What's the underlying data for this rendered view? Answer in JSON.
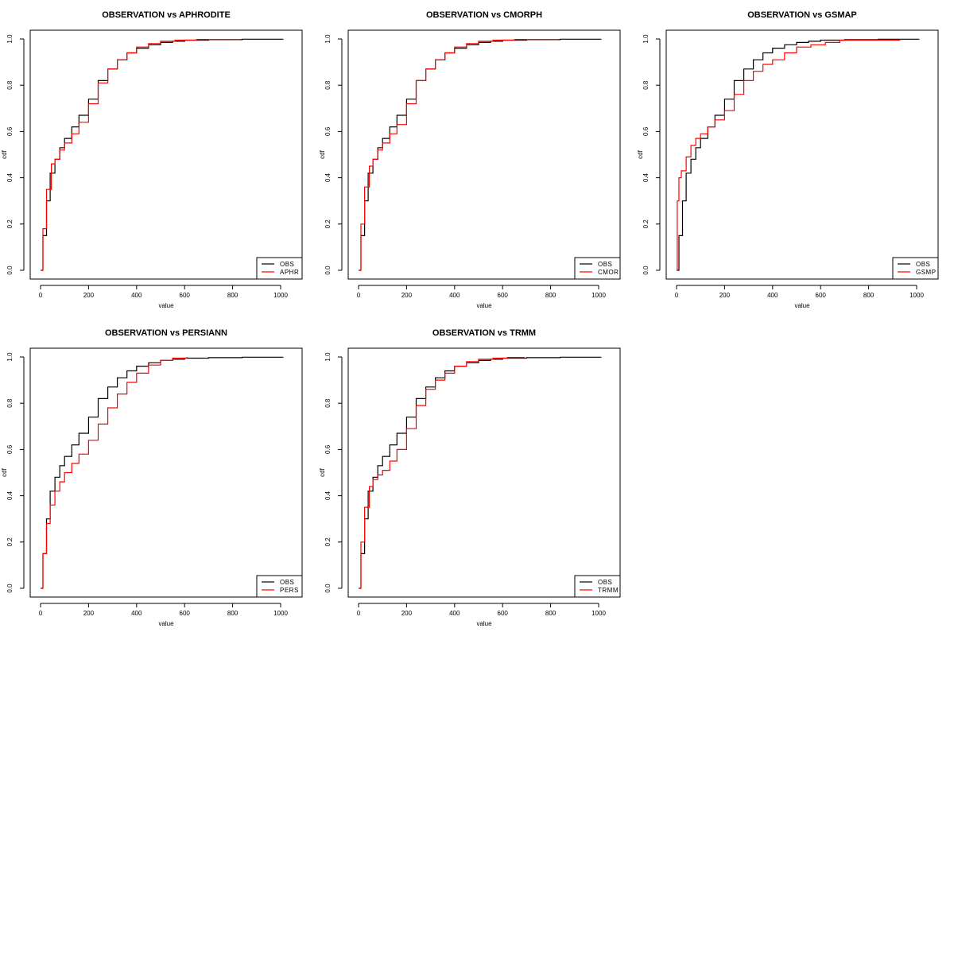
{
  "colors": {
    "obs": "#000000",
    "product": "#ff0000"
  },
  "chart_data": [
    {
      "type": "line",
      "title": "OBSERVATION vs APHRODITE",
      "xlabel": "value",
      "ylabel": "cdf",
      "xlim": [
        0,
        1000
      ],
      "ylim": [
        0,
        1
      ],
      "x_ticks": [
        "0",
        "200",
        "400",
        "600",
        "800",
        "1000"
      ],
      "y_ticks": [
        "0.0",
        "0.2",
        "0.4",
        "0.6",
        "0.8",
        "1.0"
      ],
      "legend_position": "bottom-right",
      "series": [
        {
          "name": "OBS",
          "color": "#000000",
          "x": [
            0,
            10,
            25,
            40,
            60,
            80,
            100,
            130,
            160,
            200,
            240,
            280,
            320,
            360,
            400,
            450,
            500,
            550,
            600,
            700,
            840,
            1010
          ],
          "y": [
            0.0,
            0.15,
            0.3,
            0.42,
            0.48,
            0.53,
            0.57,
            0.62,
            0.67,
            0.74,
            0.82,
            0.87,
            0.91,
            0.94,
            0.96,
            0.975,
            0.985,
            0.99,
            0.995,
            0.997,
            0.999,
            1.0
          ]
        },
        {
          "name": "APHR",
          "color": "#ff0000",
          "x": [
            0,
            10,
            25,
            45,
            60,
            80,
            100,
            130,
            160,
            200,
            240,
            280,
            320,
            360,
            400,
            450,
            500,
            560,
            650,
            830
          ],
          "y": [
            0.0,
            0.18,
            0.35,
            0.46,
            0.48,
            0.52,
            0.55,
            0.59,
            0.64,
            0.72,
            0.81,
            0.87,
            0.91,
            0.94,
            0.965,
            0.98,
            0.99,
            0.995,
            0.998,
            1.0
          ]
        }
      ]
    },
    {
      "type": "line",
      "title": "OBSERVATION vs CMORPH",
      "xlabel": "value",
      "ylabel": "cdf",
      "xlim": [
        0,
        1000
      ],
      "ylim": [
        0,
        1
      ],
      "x_ticks": [
        "0",
        "200",
        "400",
        "600",
        "800",
        "1000"
      ],
      "y_ticks": [
        "0.0",
        "0.2",
        "0.4",
        "0.6",
        "0.8",
        "1.0"
      ],
      "legend_position": "bottom-right",
      "series": [
        {
          "name": "OBS",
          "color": "#000000",
          "x": [
            0,
            10,
            25,
            40,
            60,
            80,
            100,
            130,
            160,
            200,
            240,
            280,
            320,
            360,
            400,
            450,
            500,
            550,
            600,
            700,
            840,
            1010
          ],
          "y": [
            0.0,
            0.15,
            0.3,
            0.42,
            0.48,
            0.53,
            0.57,
            0.62,
            0.67,
            0.74,
            0.82,
            0.87,
            0.91,
            0.94,
            0.96,
            0.975,
            0.985,
            0.99,
            0.995,
            0.997,
            0.999,
            1.0
          ]
        },
        {
          "name": "CMOR",
          "color": "#ff0000",
          "x": [
            0,
            10,
            25,
            45,
            60,
            80,
            100,
            130,
            160,
            200,
            240,
            280,
            320,
            360,
            400,
            450,
            500,
            560,
            650,
            830
          ],
          "y": [
            0.0,
            0.2,
            0.36,
            0.45,
            0.48,
            0.52,
            0.55,
            0.59,
            0.63,
            0.72,
            0.82,
            0.87,
            0.91,
            0.94,
            0.965,
            0.98,
            0.99,
            0.995,
            0.998,
            1.0
          ]
        }
      ]
    },
    {
      "type": "line",
      "title": "OBSERVATION vs GSMAP",
      "xlabel": "value",
      "ylabel": "cdf",
      "xlim": [
        0,
        1000
      ],
      "ylim": [
        0,
        1
      ],
      "x_ticks": [
        "0",
        "200",
        "400",
        "600",
        "800",
        "1000"
      ],
      "y_ticks": [
        "0.0",
        "0.2",
        "0.4",
        "0.6",
        "0.8",
        "1.0"
      ],
      "legend_position": "bottom-right",
      "series": [
        {
          "name": "OBS",
          "color": "#000000",
          "x": [
            0,
            10,
            25,
            40,
            60,
            80,
            100,
            130,
            160,
            200,
            240,
            280,
            320,
            360,
            400,
            450,
            500,
            550,
            600,
            700,
            840,
            1010
          ],
          "y": [
            0.0,
            0.15,
            0.3,
            0.42,
            0.48,
            0.53,
            0.57,
            0.62,
            0.67,
            0.74,
            0.82,
            0.87,
            0.91,
            0.94,
            0.96,
            0.975,
            0.985,
            0.99,
            0.995,
            0.997,
            0.999,
            1.0
          ]
        },
        {
          "name": "GSMP",
          "color": "#ff0000",
          "x": [
            0,
            3,
            10,
            20,
            40,
            60,
            80,
            100,
            130,
            160,
            200,
            240,
            280,
            320,
            360,
            400,
            450,
            500,
            560,
            620,
            680,
            930
          ],
          "y": [
            0.0,
            0.3,
            0.4,
            0.43,
            0.49,
            0.54,
            0.57,
            0.59,
            0.62,
            0.65,
            0.69,
            0.76,
            0.82,
            0.86,
            0.89,
            0.91,
            0.94,
            0.965,
            0.975,
            0.985,
            0.995,
            1.0
          ]
        }
      ]
    },
    {
      "type": "line",
      "title": "OBSERVATION vs PERSIANN",
      "xlabel": "value",
      "ylabel": "cdf",
      "xlim": [
        0,
        1000
      ],
      "ylim": [
        0,
        1
      ],
      "x_ticks": [
        "0",
        "200",
        "400",
        "600",
        "800",
        "1000"
      ],
      "y_ticks": [
        "0.0",
        "0.2",
        "0.4",
        "0.6",
        "0.8",
        "1.0"
      ],
      "legend_position": "bottom-right",
      "series": [
        {
          "name": "OBS",
          "color": "#000000",
          "x": [
            0,
            10,
            25,
            40,
            60,
            80,
            100,
            130,
            160,
            200,
            240,
            280,
            320,
            360,
            400,
            450,
            500,
            550,
            600,
            700,
            840,
            1010
          ],
          "y": [
            0.0,
            0.15,
            0.3,
            0.42,
            0.48,
            0.53,
            0.57,
            0.62,
            0.67,
            0.74,
            0.82,
            0.87,
            0.91,
            0.94,
            0.96,
            0.975,
            0.985,
            0.99,
            0.995,
            0.997,
            0.999,
            1.0
          ]
        },
        {
          "name": "PERS",
          "color": "#ff0000",
          "x": [
            0,
            10,
            25,
            40,
            60,
            80,
            100,
            130,
            160,
            200,
            240,
            280,
            320,
            360,
            400,
            450,
            500,
            550,
            610
          ],
          "y": [
            0.0,
            0.15,
            0.28,
            0.36,
            0.42,
            0.46,
            0.5,
            0.54,
            0.58,
            0.64,
            0.71,
            0.78,
            0.84,
            0.89,
            0.93,
            0.965,
            0.985,
            0.995,
            1.0
          ]
        }
      ]
    },
    {
      "type": "line",
      "title": "OBSERVATION vs TRMM",
      "xlabel": "value",
      "ylabel": "cdf",
      "xlim": [
        0,
        1000
      ],
      "ylim": [
        0,
        1
      ],
      "x_ticks": [
        "0",
        "200",
        "400",
        "600",
        "800",
        "1000"
      ],
      "y_ticks": [
        "0.0",
        "0.2",
        "0.4",
        "0.6",
        "0.8",
        "1.0"
      ],
      "legend_position": "bottom-right",
      "series": [
        {
          "name": "OBS",
          "color": "#000000",
          "x": [
            0,
            10,
            25,
            40,
            60,
            80,
            100,
            130,
            160,
            200,
            240,
            280,
            320,
            360,
            400,
            450,
            500,
            550,
            600,
            700,
            840,
            1010
          ],
          "y": [
            0.0,
            0.15,
            0.3,
            0.42,
            0.48,
            0.53,
            0.57,
            0.62,
            0.67,
            0.74,
            0.82,
            0.87,
            0.91,
            0.94,
            0.96,
            0.975,
            0.985,
            0.99,
            0.995,
            0.997,
            0.999,
            1.0
          ]
        },
        {
          "name": "TRMM",
          "color": "#ff0000",
          "x": [
            0,
            10,
            25,
            45,
            60,
            80,
            100,
            130,
            160,
            200,
            240,
            280,
            320,
            360,
            400,
            450,
            500,
            560,
            620,
            690
          ],
          "y": [
            0.0,
            0.2,
            0.35,
            0.44,
            0.47,
            0.49,
            0.51,
            0.55,
            0.6,
            0.69,
            0.79,
            0.86,
            0.9,
            0.93,
            0.96,
            0.98,
            0.99,
            0.995,
            0.998,
            1.0
          ]
        }
      ]
    }
  ]
}
